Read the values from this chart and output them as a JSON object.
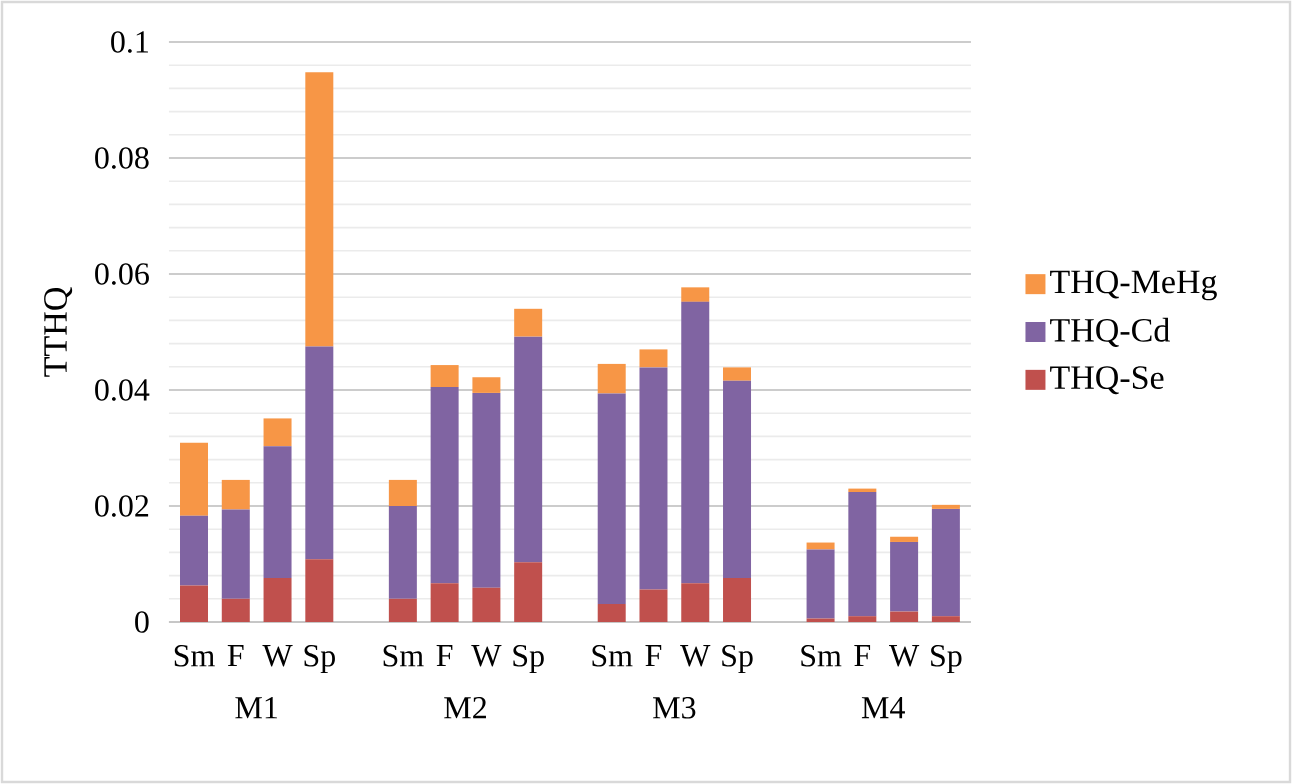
{
  "chart_data": {
    "type": "bar",
    "stacked": true,
    "ylabel": "TTHQ",
    "categories": [
      "Sm",
      "F",
      "W",
      "Sp",
      null,
      "Sm",
      "F",
      "W",
      "Sp",
      null,
      "Sm",
      "F",
      "W",
      "Sp",
      null,
      "Sm",
      "F",
      "W",
      "Sp"
    ],
    "series": [
      {
        "name": "THQ-Se",
        "color": "#c0504d",
        "values": [
          0.0063,
          0.004,
          0.0076,
          0.0108,
          null,
          0.004,
          0.0067,
          0.0059,
          0.0103,
          null,
          0.0031,
          0.0056,
          0.0067,
          0.0076,
          null,
          0.0006,
          0.001,
          0.0018,
          0.001
        ]
      },
      {
        "name": "THQ-Cd",
        "color": "#8064a2",
        "values": [
          0.012,
          0.0154,
          0.0227,
          0.0367,
          null,
          0.016,
          0.0338,
          0.0336,
          0.0389,
          null,
          0.0363,
          0.0383,
          0.0485,
          0.034,
          null,
          0.0119,
          0.0214,
          0.012,
          0.0185
        ]
      },
      {
        "name": "THQ-MeHg",
        "color": "#f79646",
        "values": [
          0.0126,
          0.0051,
          0.0048,
          0.0473,
          null,
          0.0045,
          0.0038,
          0.0027,
          0.0048,
          null,
          0.0051,
          0.0031,
          0.0025,
          0.0023,
          null,
          0.0012,
          0.0006,
          0.0009,
          0.0007
        ]
      }
    ],
    "annotations": [
      "M1",
      "M2",
      "M3",
      "M4"
    ],
    "ylim": [
      0,
      0.1
    ],
    "yticks": [
      0,
      0.02,
      0.04,
      0.06,
      0.08,
      0.1
    ],
    "grid": "y",
    "legend": "right"
  }
}
